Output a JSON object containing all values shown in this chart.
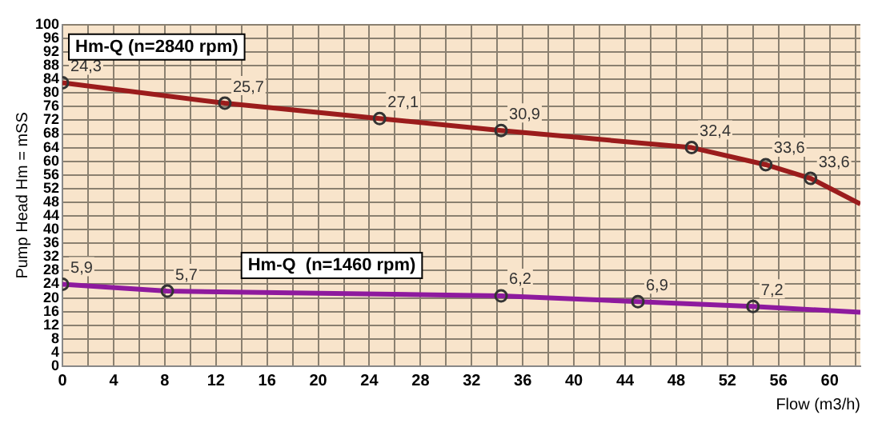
{
  "chart_data": {
    "type": "line",
    "xlabel": "Flow (m3/h)",
    "ylabel": "Pump Head Hm = mSS",
    "xlim": [
      0,
      62.4
    ],
    "ylim": [
      0,
      100
    ],
    "xticks": [
      0,
      {
        "value": 2,
        "label": null
      },
      4,
      {
        "value": 6,
        "label": null
      },
      8,
      {
        "value": 10,
        "label": null
      },
      12,
      {
        "value": 14,
        "label": null
      },
      16,
      {
        "value": 18,
        "label": null
      },
      20,
      {
        "value": 22,
        "label": null
      },
      24,
      {
        "value": 26,
        "label": null
      },
      28,
      {
        "value": 30,
        "label": null
      },
      32,
      {
        "value": 34,
        "label": null
      },
      36,
      {
        "value": 38,
        "label": null
      },
      40,
      {
        "value": 42,
        "label": null
      },
      44,
      {
        "value": 46,
        "label": null
      },
      48,
      {
        "value": 50,
        "label": null
      },
      52,
      {
        "value": 54,
        "label": null
      },
      56,
      {
        "value": 58,
        "label": null
      },
      60,
      {
        "value": 62,
        "label": null
      }
    ],
    "yticks": [
      0,
      4,
      8,
      12,
      16,
      20,
      24,
      28,
      32,
      36,
      40,
      44,
      48,
      52,
      56,
      60,
      64,
      68,
      72,
      76,
      80,
      84,
      88,
      92,
      96,
      100
    ],
    "grid": true,
    "legend": false,
    "marker": "circle",
    "line_style": "solid",
    "series": [
      {
        "name": "Hm-Q (n=2840 rpm)",
        "color": "#9b1c1c",
        "x": [
          0,
          12.7,
          24.8,
          34.3,
          49.2,
          55,
          58.5,
          62.4
        ],
        "values": [
          83,
          77,
          72.5,
          69,
          64,
          59,
          55,
          47.5
        ]
      },
      {
        "name": "Hm-Q  (n=1460 rpm)",
        "color": "#8e1a9e",
        "x": [
          0,
          8.2,
          34.3,
          45,
          54,
          62.4
        ],
        "values": [
          24,
          22,
          20.6,
          18.9,
          17.5,
          15.8
        ]
      }
    ],
    "annotations": [
      {
        "text": "24,3",
        "x": 0,
        "y": 83
      },
      {
        "text": "25,7",
        "x": 12.7,
        "y": 77
      },
      {
        "text": "27,1",
        "x": 24.8,
        "y": 72.5
      },
      {
        "text": "30,9",
        "x": 34.3,
        "y": 69
      },
      {
        "text": "32,4",
        "x": 49.2,
        "y": 64
      },
      {
        "text": "33,6",
        "x": 55,
        "y": 59
      },
      {
        "text": "33,6",
        "x": 58.5,
        "y": 55
      },
      {
        "text": "5,9",
        "x": 0,
        "y": 24
      },
      {
        "text": "5,7",
        "x": 8.2,
        "y": 22
      },
      {
        "text": "6,2",
        "x": 34.3,
        "y": 20.6
      },
      {
        "text": "6,9",
        "x": 45,
        "y": 18.9
      },
      {
        "text": "7,2",
        "x": 54,
        "y": 17.5
      }
    ]
  }
}
